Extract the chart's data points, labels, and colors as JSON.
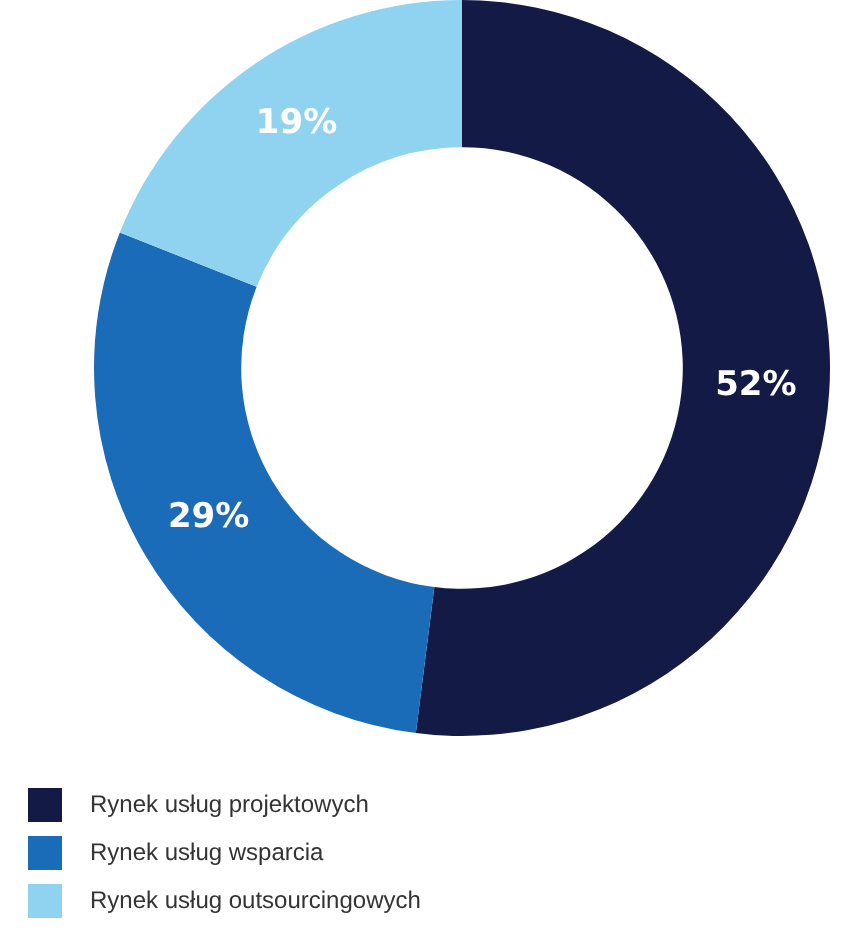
{
  "chart_data": {
    "type": "donut",
    "categories": [
      "Rynek usług projektowych",
      "Rynek usług wsparcia",
      "Rynek usług outsourcingowych"
    ],
    "values": [
      52,
      29,
      19
    ],
    "colors": [
      "#141a46",
      "#1a6bb8",
      "#8fd3f0"
    ],
    "value_labels": [
      "52%",
      "29%",
      "19%"
    ],
    "legend": "bottom"
  }
}
